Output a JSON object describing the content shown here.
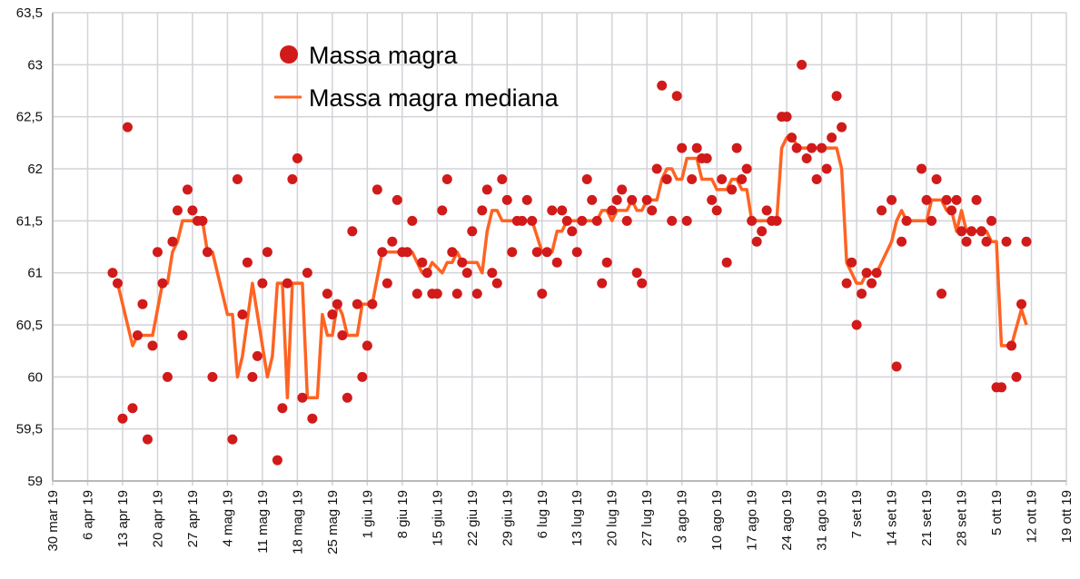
{
  "chart_data": {
    "type": "scatter+line",
    "x_unit": "days since 30 mar 19",
    "xlim": [
      0,
      203
    ],
    "ylim": [
      59,
      63.5
    ],
    "grid": true,
    "legend_position": "top-left",
    "colors": {
      "points": "#d11a1a",
      "median": "#ff6322",
      "grid": "#d3d3d8",
      "axis": "#b8b8b8"
    },
    "y_ticks": [
      "63,5",
      "63",
      "62,5",
      "62",
      "61,5",
      "61",
      "60,5",
      "60",
      "59,5",
      "59"
    ],
    "y_tick_values": [
      63.5,
      63,
      62.5,
      62,
      61.5,
      61,
      60.5,
      60,
      59.5,
      59
    ],
    "x_ticks": [
      "30 mar 19",
      "6 apr 19",
      "13 apr 19",
      "20 apr 19",
      "27 apr 19",
      "4 mag 19",
      "11 mag 19",
      "18 mag 19",
      "25 mag 19",
      "1 giu 19",
      "8 giu 19",
      "15 giu 19",
      "22 giu 19",
      "29 giu 19",
      "6 lug 19",
      "13 lug 19",
      "20 lug 19",
      "27 lug 19",
      "3 ago 19",
      "10 ago 19",
      "17 ago 19",
      "24 ago 19",
      "31 ago 19",
      "7 set 19",
      "14 set 19",
      "21 set 19",
      "28 set 19",
      "5 ott 19",
      "12 ott 19",
      "19 ott 19"
    ],
    "series": [
      {
        "name": "Massa magra",
        "kind": "points",
        "points": [
          [
            12,
            61.0
          ],
          [
            13,
            60.9
          ],
          [
            14,
            59.6
          ],
          [
            15,
            62.4
          ],
          [
            16,
            59.7
          ],
          [
            17,
            60.4
          ],
          [
            18,
            60.7
          ],
          [
            19,
            59.4
          ],
          [
            20,
            60.3
          ],
          [
            21,
            61.2
          ],
          [
            22,
            60.9
          ],
          [
            23,
            60.0
          ],
          [
            24,
            61.3
          ],
          [
            25,
            61.6
          ],
          [
            26,
            60.4
          ],
          [
            27,
            61.8
          ],
          [
            28,
            61.6
          ],
          [
            29,
            61.5
          ],
          [
            30,
            61.5
          ],
          [
            31,
            61.2
          ],
          [
            32,
            60.0
          ],
          [
            36,
            59.4
          ],
          [
            37,
            61.9
          ],
          [
            38,
            60.6
          ],
          [
            39,
            61.1
          ],
          [
            40,
            60.0
          ],
          [
            41,
            60.2
          ],
          [
            42,
            60.9
          ],
          [
            43,
            61.2
          ],
          [
            45,
            59.2
          ],
          [
            46,
            59.7
          ],
          [
            47,
            60.9
          ],
          [
            48,
            61.9
          ],
          [
            49,
            62.1
          ],
          [
            50,
            59.8
          ],
          [
            51,
            61.0
          ],
          [
            52,
            59.6
          ],
          [
            55,
            60.8
          ],
          [
            56,
            60.6
          ],
          [
            57,
            60.7
          ],
          [
            58,
            60.4
          ],
          [
            59,
            59.8
          ],
          [
            60,
            61.4
          ],
          [
            61,
            60.7
          ],
          [
            62,
            60.0
          ],
          [
            63,
            60.3
          ],
          [
            64,
            60.7
          ],
          [
            65,
            61.8
          ],
          [
            66,
            61.2
          ],
          [
            67,
            60.9
          ],
          [
            68,
            61.3
          ],
          [
            69,
            61.7
          ],
          [
            70,
            61.2
          ],
          [
            71,
            61.2
          ],
          [
            72,
            61.5
          ],
          [
            73,
            60.8
          ],
          [
            74,
            61.1
          ],
          [
            75,
            61.0
          ],
          [
            76,
            60.8
          ],
          [
            77,
            60.8
          ],
          [
            78,
            61.6
          ],
          [
            79,
            61.9
          ],
          [
            80,
            61.2
          ],
          [
            81,
            60.8
          ],
          [
            82,
            61.1
          ],
          [
            83,
            61.0
          ],
          [
            84,
            61.4
          ],
          [
            85,
            60.8
          ],
          [
            86,
            61.6
          ],
          [
            87,
            61.8
          ],
          [
            88,
            61.0
          ],
          [
            89,
            60.9
          ],
          [
            90,
            61.9
          ],
          [
            91,
            61.7
          ],
          [
            92,
            61.2
          ],
          [
            93,
            61.5
          ],
          [
            94,
            61.5
          ],
          [
            95,
            61.7
          ],
          [
            96,
            61.5
          ],
          [
            97,
            61.2
          ],
          [
            98,
            60.8
          ],
          [
            99,
            61.2
          ],
          [
            100,
            61.6
          ],
          [
            101,
            61.1
          ],
          [
            102,
            61.6
          ],
          [
            103,
            61.5
          ],
          [
            104,
            61.4
          ],
          [
            105,
            61.2
          ],
          [
            106,
            61.5
          ],
          [
            107,
            61.9
          ],
          [
            108,
            61.7
          ],
          [
            109,
            61.5
          ],
          [
            110,
            60.9
          ],
          [
            111,
            61.1
          ],
          [
            112,
            61.6
          ],
          [
            113,
            61.7
          ],
          [
            114,
            61.8
          ],
          [
            115,
            61.5
          ],
          [
            116,
            61.7
          ],
          [
            117,
            61.0
          ],
          [
            118,
            60.9
          ],
          [
            119,
            61.7
          ],
          [
            120,
            61.6
          ],
          [
            121,
            62.0
          ],
          [
            122,
            62.8
          ],
          [
            123,
            61.9
          ],
          [
            124,
            61.5
          ],
          [
            125,
            62.7
          ],
          [
            126,
            62.2
          ],
          [
            127,
            61.5
          ],
          [
            128,
            61.9
          ],
          [
            129,
            62.2
          ],
          [
            130,
            62.1
          ],
          [
            131,
            62.1
          ],
          [
            132,
            61.7
          ],
          [
            133,
            61.6
          ],
          [
            134,
            61.9
          ],
          [
            135,
            61.1
          ],
          [
            136,
            61.8
          ],
          [
            137,
            62.2
          ],
          [
            138,
            61.9
          ],
          [
            139,
            62.0
          ],
          [
            140,
            61.5
          ],
          [
            141,
            61.3
          ],
          [
            142,
            61.4
          ],
          [
            143,
            61.6
          ],
          [
            144,
            61.5
          ],
          [
            145,
            61.5
          ],
          [
            146,
            62.5
          ],
          [
            147,
            62.5
          ],
          [
            148,
            62.3
          ],
          [
            149,
            62.2
          ],
          [
            150,
            63.0
          ],
          [
            151,
            62.1
          ],
          [
            152,
            62.2
          ],
          [
            153,
            61.9
          ],
          [
            154,
            62.2
          ],
          [
            155,
            62.0
          ],
          [
            156,
            62.3
          ],
          [
            157,
            62.7
          ],
          [
            158,
            62.4
          ],
          [
            159,
            60.9
          ],
          [
            160,
            61.1
          ],
          [
            161,
            60.5
          ],
          [
            162,
            60.8
          ],
          [
            163,
            61.0
          ],
          [
            164,
            60.9
          ],
          [
            165,
            61.0
          ],
          [
            166,
            61.6
          ],
          [
            168,
            61.7
          ],
          [
            169,
            60.1
          ],
          [
            170,
            61.3
          ],
          [
            171,
            61.5
          ],
          [
            174,
            62.0
          ],
          [
            175,
            61.7
          ],
          [
            176,
            61.5
          ],
          [
            177,
            61.9
          ],
          [
            178,
            60.8
          ],
          [
            179,
            61.7
          ],
          [
            180,
            61.6
          ],
          [
            181,
            61.7
          ],
          [
            182,
            61.4
          ],
          [
            183,
            61.3
          ],
          [
            184,
            61.4
          ],
          [
            185,
            61.7
          ],
          [
            186,
            61.4
          ],
          [
            187,
            61.3
          ],
          [
            188,
            61.5
          ],
          [
            189,
            59.9
          ],
          [
            190,
            59.9
          ],
          [
            191,
            61.3
          ],
          [
            192,
            60.3
          ],
          [
            193,
            60.0
          ],
          [
            194,
            60.7
          ],
          [
            195,
            61.3
          ]
        ]
      },
      {
        "name": "Massa magra mediana",
        "kind": "line",
        "points": [
          [
            13,
            60.9
          ],
          [
            15,
            60.5
          ],
          [
            16,
            60.3
          ],
          [
            17,
            60.4
          ],
          [
            20,
            60.4
          ],
          [
            22,
            60.9
          ],
          [
            23,
            60.9
          ],
          [
            24,
            61.2
          ],
          [
            25,
            61.3
          ],
          [
            26,
            61.5
          ],
          [
            30,
            61.5
          ],
          [
            31,
            61.2
          ],
          [
            32,
            61.2
          ],
          [
            35,
            60.6
          ],
          [
            36,
            60.6
          ],
          [
            37,
            60.0
          ],
          [
            38,
            60.2
          ],
          [
            40,
            60.9
          ],
          [
            43,
            60.0
          ],
          [
            44,
            60.2
          ],
          [
            45,
            60.9
          ],
          [
            46,
            60.9
          ],
          [
            47,
            59.8
          ],
          [
            48,
            60.9
          ],
          [
            50,
            60.9
          ],
          [
            51,
            59.8
          ],
          [
            53,
            59.8
          ],
          [
            54,
            60.6
          ],
          [
            55,
            60.4
          ],
          [
            56,
            60.4
          ],
          [
            57,
            60.7
          ],
          [
            58,
            60.6
          ],
          [
            59,
            60.4
          ],
          [
            61,
            60.4
          ],
          [
            62,
            60.7
          ],
          [
            64,
            60.7
          ],
          [
            66,
            61.2
          ],
          [
            72,
            61.2
          ],
          [
            74,
            61.0
          ],
          [
            75,
            61.0
          ],
          [
            76,
            61.1
          ],
          [
            78,
            61.0
          ],
          [
            79,
            61.1
          ],
          [
            80,
            61.1
          ],
          [
            81,
            61.2
          ],
          [
            82,
            61.1
          ],
          [
            85,
            61.1
          ],
          [
            86,
            61.0
          ],
          [
            87,
            61.4
          ],
          [
            88,
            61.6
          ],
          [
            89,
            61.6
          ],
          [
            90,
            61.5
          ],
          [
            96,
            61.5
          ],
          [
            98,
            61.2
          ],
          [
            100,
            61.2
          ],
          [
            101,
            61.4
          ],
          [
            102,
            61.4
          ],
          [
            103,
            61.5
          ],
          [
            109,
            61.5
          ],
          [
            110,
            61.6
          ],
          [
            111,
            61.6
          ],
          [
            112,
            61.5
          ],
          [
            113,
            61.6
          ],
          [
            115,
            61.6
          ],
          [
            116,
            61.7
          ],
          [
            117,
            61.6
          ],
          [
            118,
            61.6
          ],
          [
            119,
            61.7
          ],
          [
            121,
            61.7
          ],
          [
            122,
            61.9
          ],
          [
            123,
            62.0
          ],
          [
            124,
            62.0
          ],
          [
            125,
            61.9
          ],
          [
            126,
            61.9
          ],
          [
            127,
            62.1
          ],
          [
            129,
            62.1
          ],
          [
            130,
            61.9
          ],
          [
            132,
            61.9
          ],
          [
            133,
            61.8
          ],
          [
            135,
            61.8
          ],
          [
            136,
            61.9
          ],
          [
            137,
            61.9
          ],
          [
            138,
            61.8
          ],
          [
            139,
            61.8
          ],
          [
            140,
            61.5
          ],
          [
            145,
            61.5
          ],
          [
            146,
            62.2
          ],
          [
            147,
            62.3
          ],
          [
            148,
            62.3
          ],
          [
            149.5,
            62.2
          ],
          [
            157,
            62.2
          ],
          [
            158,
            62.0
          ],
          [
            159,
            61.1
          ],
          [
            161,
            60.9
          ],
          [
            162,
            60.9
          ],
          [
            163,
            61.0
          ],
          [
            165,
            61.0
          ],
          [
            168,
            61.3
          ],
          [
            169,
            61.5
          ],
          [
            170,
            61.6
          ],
          [
            171,
            61.5
          ],
          [
            175,
            61.5
          ],
          [
            176,
            61.7
          ],
          [
            178,
            61.7
          ],
          [
            179,
            61.6
          ],
          [
            180,
            61.6
          ],
          [
            181,
            61.4
          ],
          [
            182,
            61.6
          ],
          [
            183,
            61.4
          ],
          [
            187,
            61.4
          ],
          [
            188,
            61.3
          ],
          [
            189,
            61.3
          ],
          [
            190,
            60.3
          ],
          [
            192,
            60.3
          ],
          [
            194,
            60.65
          ],
          [
            195,
            60.5
          ]
        ]
      }
    ]
  },
  "legend": {
    "points_label": "Massa magra",
    "line_label": "Massa magra mediana"
  }
}
